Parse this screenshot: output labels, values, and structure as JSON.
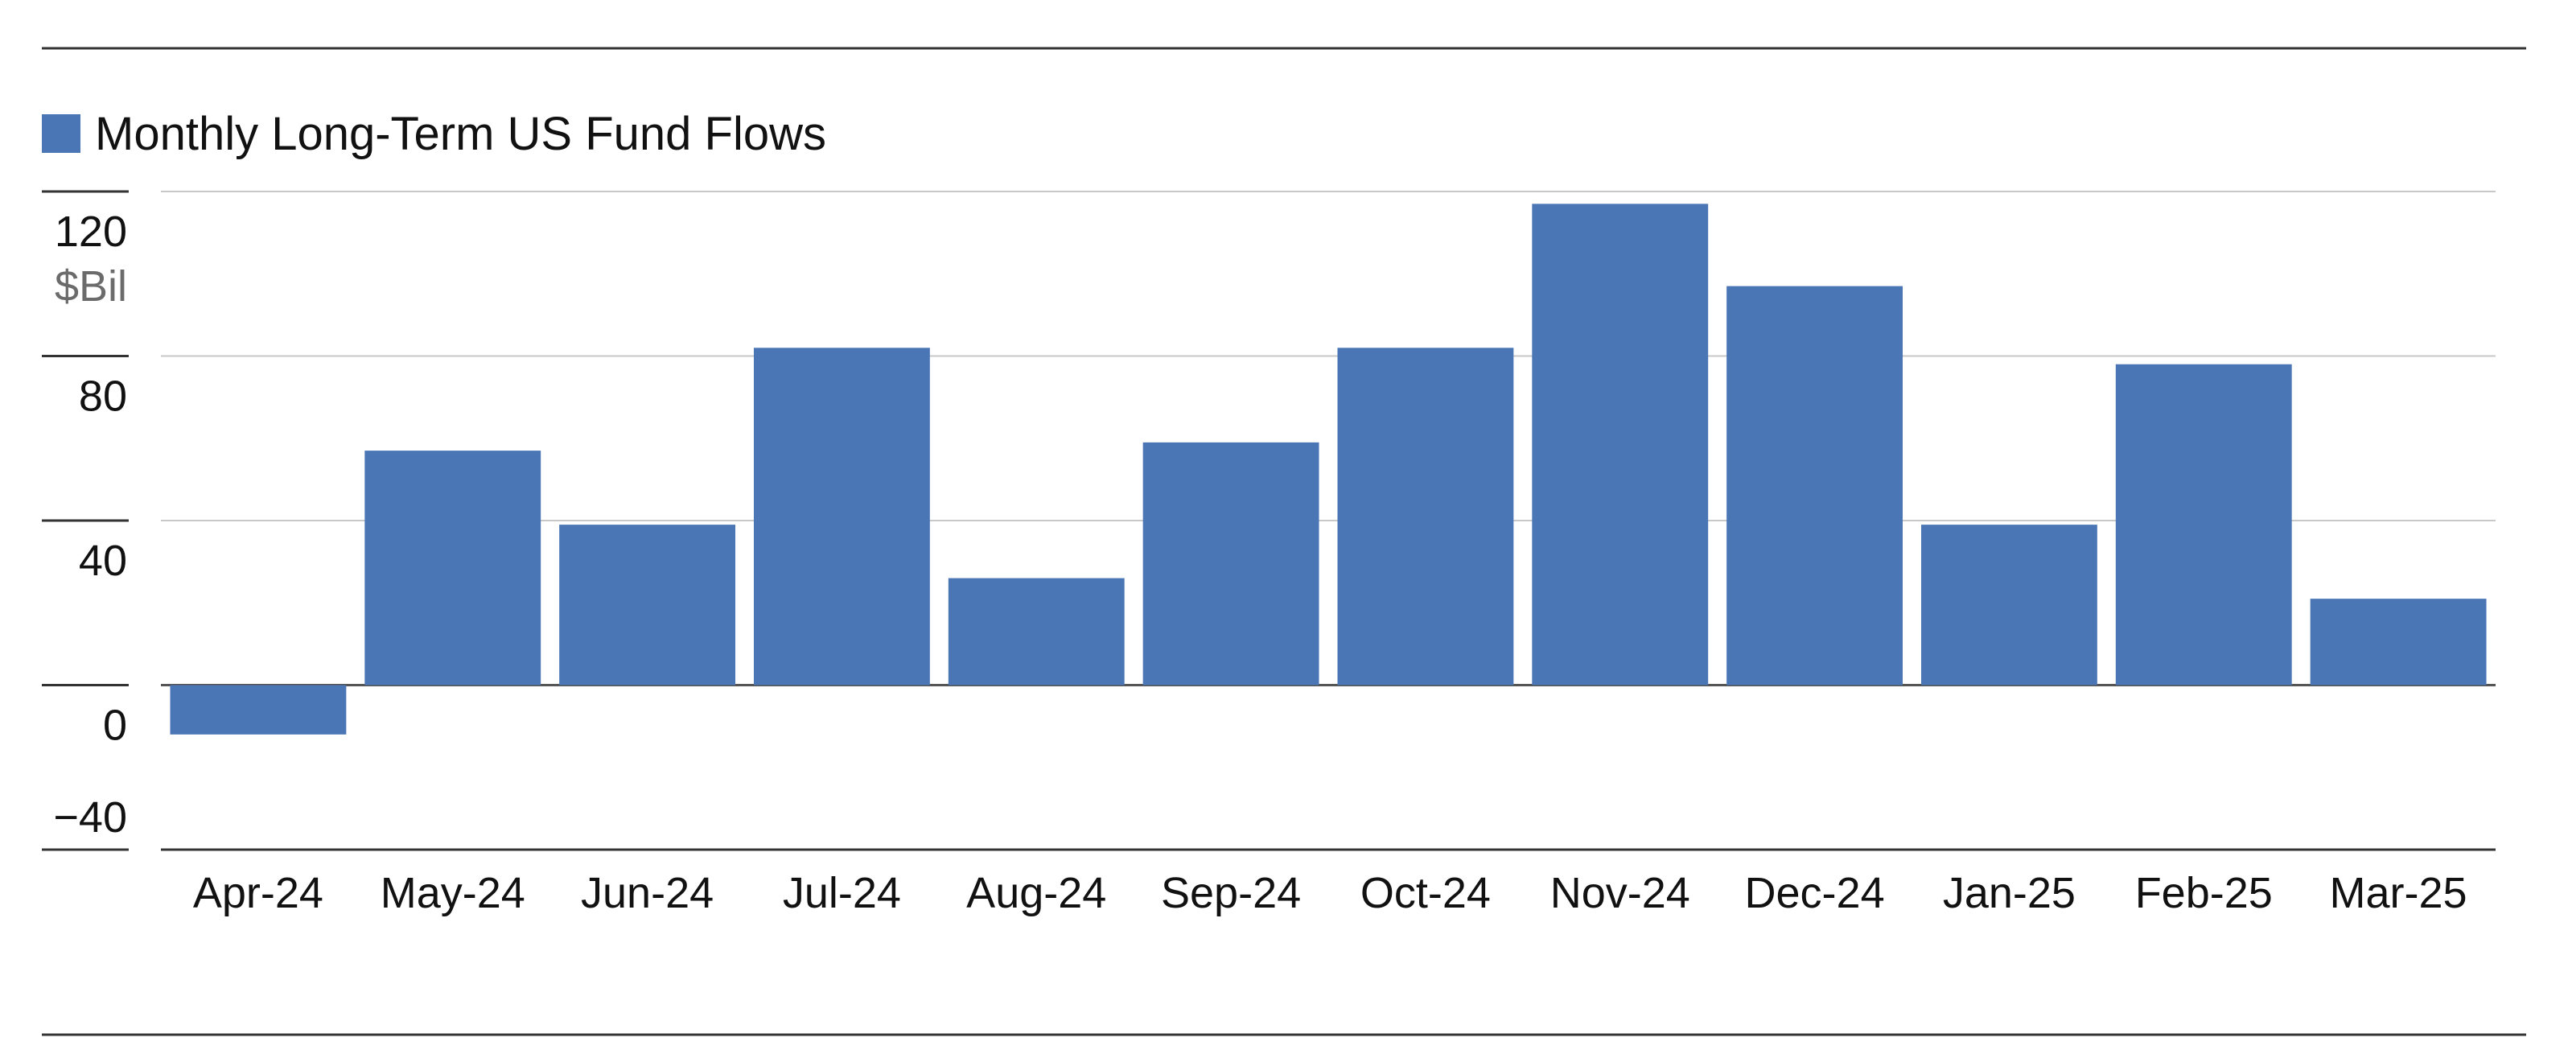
{
  "legend": {
    "label": "Monthly Long-Term US Fund Flows",
    "color": "#4a76b6"
  },
  "y_axis": {
    "unit_label": "$Bil",
    "tick_labels": [
      "120",
      "80",
      "40",
      "0",
      "−40"
    ]
  },
  "chart_data": {
    "type": "bar",
    "categories": [
      "Apr-24",
      "May-24",
      "Jun-24",
      "Jul-24",
      "Aug-24",
      "Sep-24",
      "Oct-24",
      "Nov-24",
      "Dec-24",
      "Jan-25",
      "Feb-25",
      "Mar-25"
    ],
    "series": [
      {
        "name": "Monthly Long-Term US Fund Flows",
        "values": [
          -12,
          57,
          39,
          82,
          26,
          59,
          82,
          117,
          97,
          39,
          78,
          21
        ]
      }
    ],
    "ylabel": "$Bil",
    "yticks": [
      -40,
      0,
      40,
      80,
      120
    ],
    "ylim": [
      -40,
      120
    ],
    "grid": true,
    "legend_position": "top-left",
    "bar_color": "#4a76b6"
  }
}
